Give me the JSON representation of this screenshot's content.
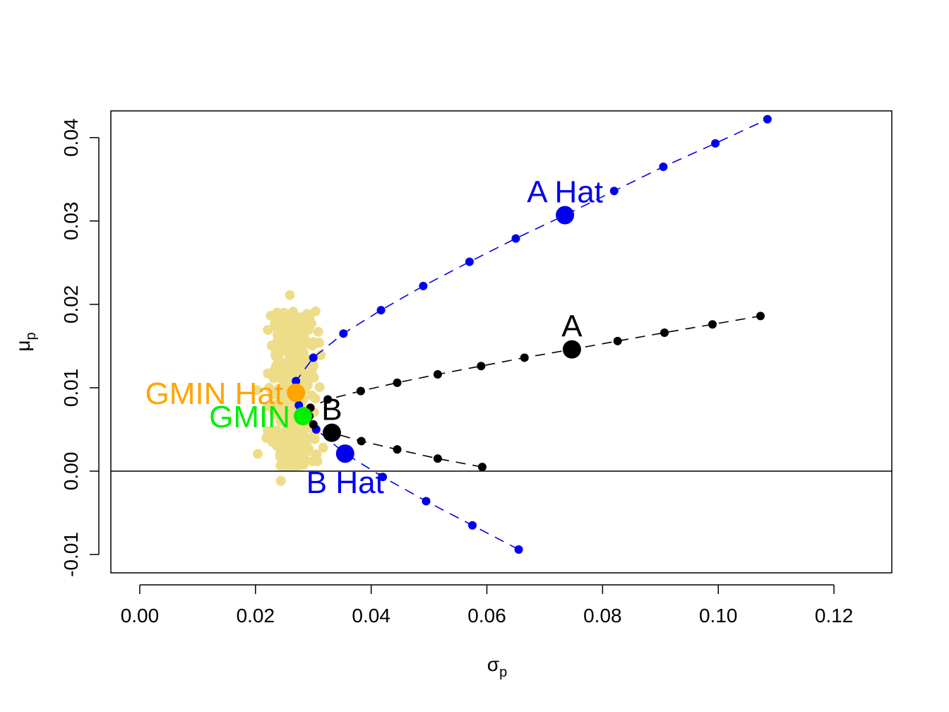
{
  "chart_data": {
    "type": "scatter",
    "title": "",
    "xlabel": "σ",
    "xlabel_sub": "p",
    "ylabel": "μ",
    "ylabel_sub": "p",
    "xlim": [
      -0.005,
      0.13
    ],
    "ylim": [
      -0.0122,
      0.0432
    ],
    "x_ticks": [
      0.0,
      0.02,
      0.04,
      0.06,
      0.08,
      0.1,
      0.12
    ],
    "x_tick_labels": [
      "0.00",
      "0.02",
      "0.04",
      "0.06",
      "0.08",
      "0.10",
      "0.12"
    ],
    "y_ticks": [
      -0.01,
      0.0,
      0.01,
      0.02,
      0.03,
      0.04
    ],
    "y_tick_labels": [
      "-0.01",
      "0.00",
      "0.01",
      "0.02",
      "0.03",
      "0.04"
    ],
    "hline_y": 0,
    "grid": false,
    "legend": "none",
    "cloud_color": "#EEDD88",
    "cloud": {
      "description_free": true,
      "x_center": 0.0265,
      "x_spread": 0.0018,
      "x_min": 0.0185,
      "x_max": 0.033,
      "y_min": -0.0015,
      "y_max": 0.0212,
      "count": 450
    },
    "series": [
      {
        "name": "",
        "color": "#0000EE",
        "style": "dashed",
        "points": [
          [
            0.0655,
            -0.0094
          ],
          [
            0.0575,
            -0.0065
          ],
          [
            0.0495,
            -0.0036
          ],
          [
            0.042,
            -0.0007
          ],
          [
            0.0355,
            0.0021
          ],
          [
            0.0305,
            0.005
          ],
          [
            0.0275,
            0.0079
          ],
          [
            0.027,
            0.0108
          ],
          [
            0.03,
            0.0136
          ],
          [
            0.0352,
            0.0165
          ],
          [
            0.0417,
            0.0193
          ],
          [
            0.049,
            0.0222
          ],
          [
            0.057,
            0.0251
          ],
          [
            0.065,
            0.0279
          ],
          [
            0.0735,
            0.0307
          ],
          [
            0.082,
            0.0336
          ],
          [
            0.0905,
            0.0365
          ],
          [
            0.0995,
            0.0393
          ],
          [
            0.1085,
            0.0422
          ]
        ]
      },
      {
        "name": "",
        "color": "#000000",
        "style": "dashed",
        "points": [
          [
            0.0592,
            0.0005
          ],
          [
            0.0515,
            0.0015
          ],
          [
            0.0445,
            0.0026
          ],
          [
            0.0383,
            0.0036
          ],
          [
            0.0332,
            0.0046
          ],
          [
            0.03,
            0.0056
          ],
          [
            0.0293,
            0.0066
          ],
          [
            0.0295,
            0.0076
          ],
          [
            0.0325,
            0.0086
          ],
          [
            0.0382,
            0.0096
          ],
          [
            0.0445,
            0.0106
          ],
          [
            0.0515,
            0.0116
          ],
          [
            0.059,
            0.0126
          ],
          [
            0.0665,
            0.0136
          ],
          [
            0.0747,
            0.0146
          ],
          [
            0.0826,
            0.0156
          ],
          [
            0.0907,
            0.0166
          ],
          [
            0.099,
            0.0176
          ],
          [
            0.1073,
            0.0186
          ]
        ]
      }
    ],
    "highlights": [
      {
        "label": "A Hat",
        "x": 0.0735,
        "y": 0.0307,
        "color": "#0000EE",
        "label_pos": "above"
      },
      {
        "label": "B Hat",
        "x": 0.0355,
        "y": 0.0021,
        "color": "#0000EE",
        "label_pos": "below"
      },
      {
        "label": "A",
        "x": 0.0747,
        "y": 0.0146,
        "color": "#000000",
        "label_pos": "above"
      },
      {
        "label": "B",
        "x": 0.0332,
        "y": 0.0046,
        "color": "#000000",
        "label_pos": "above"
      },
      {
        "label": "GMIN Hat",
        "x": 0.027,
        "y": 0.0094,
        "color": "#FFA500",
        "label_pos": "left"
      },
      {
        "label": "GMIN",
        "x": 0.0282,
        "y": 0.0066,
        "color": "#00EE00",
        "label_pos": "left"
      }
    ]
  }
}
